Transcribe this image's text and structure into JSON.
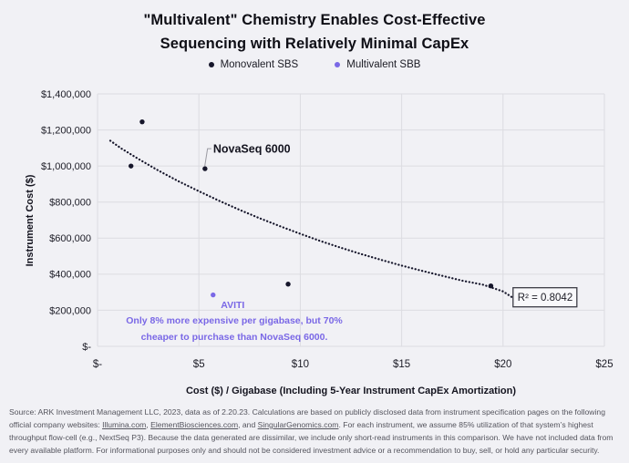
{
  "header": {
    "title_line1": "\"Multivalent\" Chemistry Enables Cost-Effective",
    "title_line2": "Sequencing with Relatively Minimal CapEx"
  },
  "legend": [
    {
      "label": "Monovalent SBS",
      "color": "#16162b"
    },
    {
      "label": "Multivalent SBB",
      "color": "#7a68e6"
    }
  ],
  "chart_data": {
    "type": "scatter",
    "xlabel": "Cost ($) / Gigabase (Including 5-Year Instrument CapEx Amortization)",
    "ylabel": "Instrument Cost ($)",
    "xlim": [
      0,
      25
    ],
    "ylim": [
      0,
      1400000
    ],
    "grid": true,
    "x_ticks": [
      {
        "value": 0,
        "label": "$-"
      },
      {
        "value": 5,
        "label": "$5"
      },
      {
        "value": 10,
        "label": "$10"
      },
      {
        "value": 15,
        "label": "$15"
      },
      {
        "value": 20,
        "label": "$20"
      },
      {
        "value": 25,
        "label": "$25"
      }
    ],
    "y_ticks": [
      {
        "value": 0,
        "label": "$-"
      },
      {
        "value": 200000,
        "label": "$200,000"
      },
      {
        "value": 400000,
        "label": "$400,000"
      },
      {
        "value": 600000,
        "label": "$600,000"
      },
      {
        "value": 800000,
        "label": "$800,000"
      },
      {
        "value": 1000000,
        "label": "$1,000,000"
      },
      {
        "value": 1200000,
        "label": "$1,200,000"
      },
      {
        "value": 1400000,
        "label": "$1,400,000"
      }
    ],
    "series": [
      {
        "name": "Monovalent SBS",
        "color": "#16162b",
        "points": [
          {
            "x": 1.65,
            "y": 1000000
          },
          {
            "x": 2.2,
            "y": 1245000
          },
          {
            "x": 5.3,
            "y": 985000,
            "label": "NovaSeq 6000"
          },
          {
            "x": 9.4,
            "y": 345000
          },
          {
            "x": 19.4,
            "y": 335000
          }
        ]
      },
      {
        "name": "Multivalent SBB",
        "color": "#7a68e6",
        "points": [
          {
            "x": 5.7,
            "y": 285000,
            "label": "AVITI"
          }
        ]
      }
    ],
    "trendline": {
      "style": "dotted",
      "color": "#16162b",
      "r_squared": 0.8042,
      "r_squared_label": "R² = 0.8042",
      "points": [
        [
          0.63,
          1140000
        ],
        [
          1.2,
          1095000
        ],
        [
          2.0,
          1040000
        ],
        [
          3.0,
          975000
        ],
        [
          4.0,
          915000
        ],
        [
          5.0,
          860000
        ],
        [
          6.0,
          807000
        ],
        [
          7.0,
          757000
        ],
        [
          8.0,
          710000
        ],
        [
          9.0,
          666000
        ],
        [
          10.0,
          624000
        ],
        [
          11.0,
          584000
        ],
        [
          12.0,
          547000
        ],
        [
          13.0,
          512000
        ],
        [
          14.0,
          479000
        ],
        [
          15.0,
          448000
        ],
        [
          16.0,
          419000
        ],
        [
          17.0,
          391000
        ],
        [
          18.0,
          364000
        ],
        [
          19.0,
          342000
        ],
        [
          20.0,
          305000
        ],
        [
          20.45,
          272000
        ]
      ]
    },
    "annotation": {
      "color": "#7a68e6",
      "line1": "Only 8% more expensive per gigabase, but 70%",
      "line2": "cheaper to purchase than NovaSeq 6000."
    }
  },
  "source": {
    "segments": [
      {
        "text": "Source: ARK Investment Management LLC, 2023, data as of 2.20.23. Calculations are based on publicly disclosed data from instrument specification pages on the following official company websites: "
      },
      {
        "text": "Illumina.com",
        "underline": true
      },
      {
        "text": ", "
      },
      {
        "text": "ElementBiosciences.com",
        "underline": true
      },
      {
        "text": ", and "
      },
      {
        "text": "SingularGenomics.com",
        "underline": true
      },
      {
        "text": ". For each instrument, we assume 85% utilization of that system’s highest throughput flow-cell (e.g., NextSeq P3). Because the data generated are dissimilar, we include only short-read instruments in this comparison. We have not included data from every available platform. For informational purposes only and should not be considered investment advice or a recommendation to buy, sell, or hold any particular security."
      }
    ]
  }
}
